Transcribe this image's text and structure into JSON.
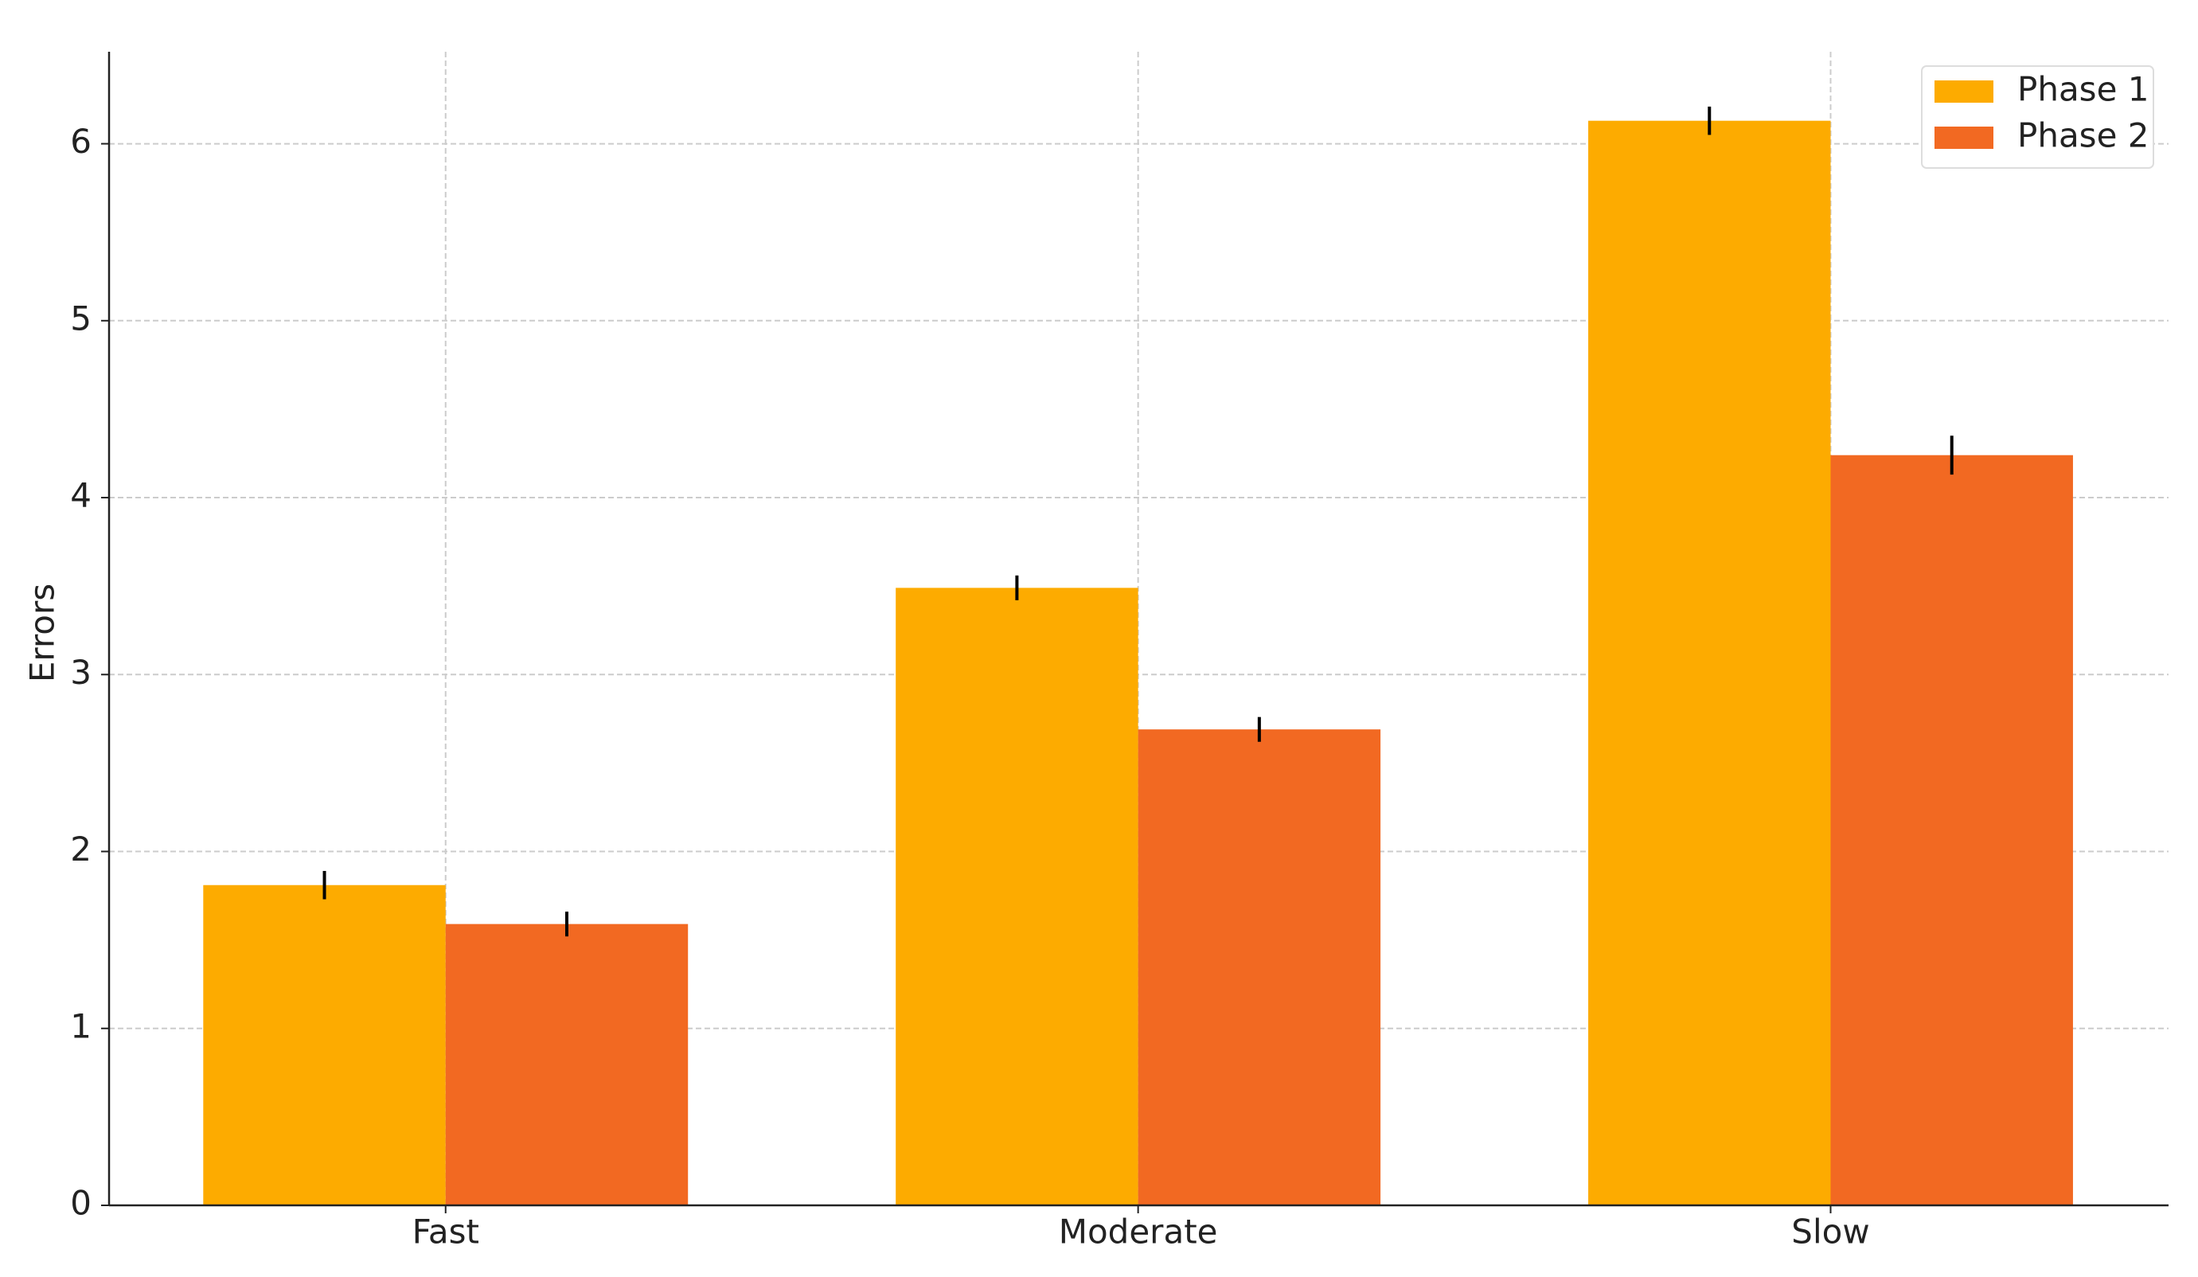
{
  "chart_data": {
    "type": "bar",
    "y_label": "Errors",
    "categories": [
      "Fast",
      "Moderate",
      "Slow"
    ],
    "series": [
      {
        "name": "Phase 1",
        "color": "#fdab00",
        "values": [
          1.81,
          3.49,
          6.13
        ],
        "errors": [
          0.08,
          0.07,
          0.08
        ]
      },
      {
        "name": "Phase 2",
        "color": "#f26922",
        "values": [
          1.59,
          2.69,
          4.24
        ],
        "errors": [
          0.07,
          0.07,
          0.11
        ]
      }
    ],
    "ylim": [
      0,
      6.52
    ],
    "yticks": [
      0,
      1,
      2,
      3,
      4,
      5,
      6
    ],
    "grid": true,
    "legend": "upper right"
  }
}
